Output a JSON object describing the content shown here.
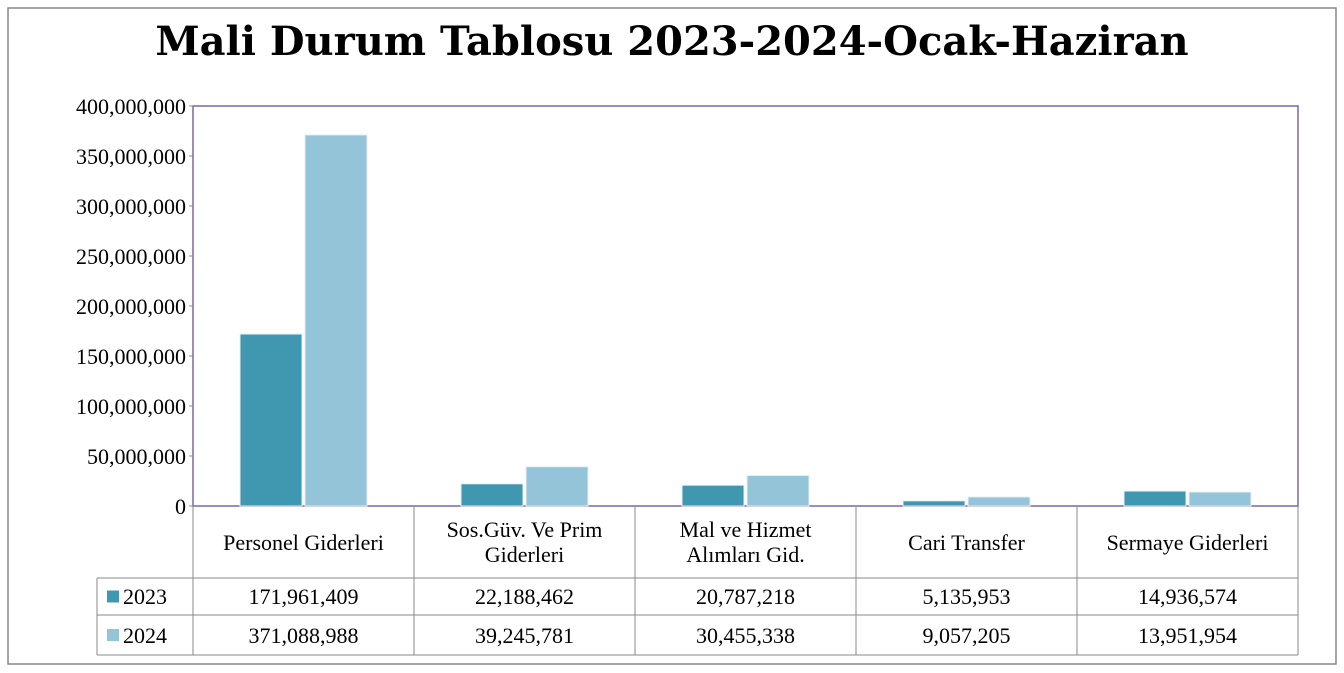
{
  "chart_data": {
    "type": "bar",
    "title": "Mali Durum Tablosu 2023-2024-Ocak-Haziran",
    "categories": [
      "Personel Giderleri",
      "Sos.Güv. Ve Prim Giderleri",
      "Mal ve Hizmet Alımları Gid.",
      "Cari Transfer",
      "Sermaye Giderleri"
    ],
    "series": [
      {
        "name": "2023",
        "color": "#3f97b0",
        "values": [
          171961409,
          22188462,
          20787218,
          5135953,
          14936574
        ],
        "value_labels": [
          "171,961,409",
          "22,188,462",
          "20,787,218",
          "5,135,953",
          "14,936,574"
        ]
      },
      {
        "name": "2024",
        "color": "#93c4d8",
        "values": [
          371088988,
          39245781,
          30455338,
          9057205,
          13951954
        ],
        "value_labels": [
          "371,088,988",
          "39,245,781",
          "30,455,338",
          "9,057,205",
          "13,951,954"
        ]
      }
    ],
    "ylim": [
      0,
      400000000
    ],
    "yticks": [
      0,
      {
        "value": 50000000,
        "label": "50,000,000"
      },
      {
        "value": 100000000,
        "label": "100,000,000"
      },
      {
        "value": 150000000,
        "label": "150,000,000"
      },
      {
        "value": 200000000,
        "label": "200,000,000"
      },
      {
        "value": 250000000,
        "label": "250,000,000"
      },
      {
        "value": 300000000,
        "label": "300,000,000"
      },
      {
        "value": 350000000,
        "label": "350,000,000"
      },
      {
        "value": 400000000,
        "label": "400,000,000"
      }
    ]
  }
}
